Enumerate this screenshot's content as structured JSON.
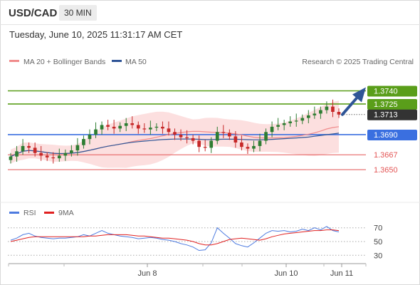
{
  "header": {
    "pair": "USD/CAD",
    "timeframe": "30 MIN",
    "datetime": "Tuesday, June 10, 2025 11:31:17 AM CET"
  },
  "legend": {
    "ma20": "MA 20 + Bollinger Bands",
    "ma50": "MA 50",
    "credit": "Research © 2025 Trading Central",
    "rsi": "RSI",
    "rsi_ma": "9MA"
  },
  "colors": {
    "resistance": "#5a9e1a",
    "current": "#333333",
    "pivot": "#3a6fe0",
    "support": "#e35555",
    "ma20": "#f08c8c",
    "bollinger_fill": "#fbd9d9",
    "ma50": "#2f5597",
    "bull_candle": "#2e7d32",
    "bear_candle": "#c62828",
    "rsi": "#4d7be0",
    "rsi_ma": "#e02020",
    "arrow": "#2f5597"
  },
  "chart_data": {
    "type": "candlestick",
    "series_names": [
      "MA 20 + Bollinger Bands",
      "MA 50"
    ],
    "ylim": [
      1.362,
      1.3764
    ],
    "levels": [
      {
        "value": "1.3740",
        "kind": "resistance"
      },
      {
        "value": "1.3725",
        "kind": "resistance"
      },
      {
        "value": "1.3713",
        "kind": "current"
      },
      {
        "value": "1.3690",
        "kind": "pivot"
      },
      {
        "value": "1.3667",
        "kind": "support"
      },
      {
        "value": "1.3650",
        "kind": "support"
      }
    ],
    "x_tick_labels": [
      "Jun 8",
      "Jun 10",
      "Jun 11"
    ],
    "closes": [
      1.3665,
      1.3671,
      1.3677,
      1.3675,
      1.3669,
      1.3666,
      1.3664,
      1.3663,
      1.3666,
      1.3669,
      1.3672,
      1.3678,
      1.3685,
      1.369,
      1.3696,
      1.3701,
      1.3699,
      1.3697,
      1.37,
      1.3703,
      1.3701,
      1.3697,
      1.3696,
      1.3698,
      1.3699,
      1.3697,
      1.3693,
      1.369,
      1.3687,
      1.3686,
      1.3683,
      1.3676,
      1.3675,
      1.3683,
      1.3693,
      1.3692,
      1.3688,
      1.3681,
      1.3676,
      1.3674,
      1.3677,
      1.3683,
      1.3693,
      1.3699,
      1.3701,
      1.3703,
      1.3705,
      1.3706,
      1.3709,
      1.3712,
      1.3714,
      1.3718,
      1.3722,
      1.3716,
      1.3713
    ],
    "rsi": {
      "ylim": [
        22,
        78
      ],
      "ticks": [
        70,
        50,
        30
      ],
      "values": [
        52,
        55,
        60,
        62,
        58,
        56,
        55,
        54,
        55,
        55,
        56,
        57,
        60,
        58,
        62,
        66,
        62,
        60,
        58,
        57,
        56,
        54,
        55,
        56,
        55,
        53,
        52,
        50,
        47,
        45,
        42,
        37,
        38,
        48,
        70,
        62,
        55,
        47,
        44,
        42,
        48,
        55,
        62,
        66,
        65,
        66,
        64,
        65,
        68,
        66,
        70,
        67,
        72,
        66,
        64
      ],
      "ma9": [
        50,
        52,
        54,
        56,
        57,
        57,
        57,
        57,
        57,
        57,
        57,
        57,
        57,
        58,
        58,
        59,
        60,
        60,
        60,
        60,
        59,
        58,
        58,
        57,
        56,
        55,
        55,
        54,
        53,
        52,
        50,
        47,
        45,
        45,
        47,
        50,
        53,
        54,
        55,
        54,
        53,
        52,
        54,
        57,
        59,
        61,
        62,
        63,
        64,
        65,
        66,
        66,
        67,
        67,
        66
      ]
    }
  }
}
